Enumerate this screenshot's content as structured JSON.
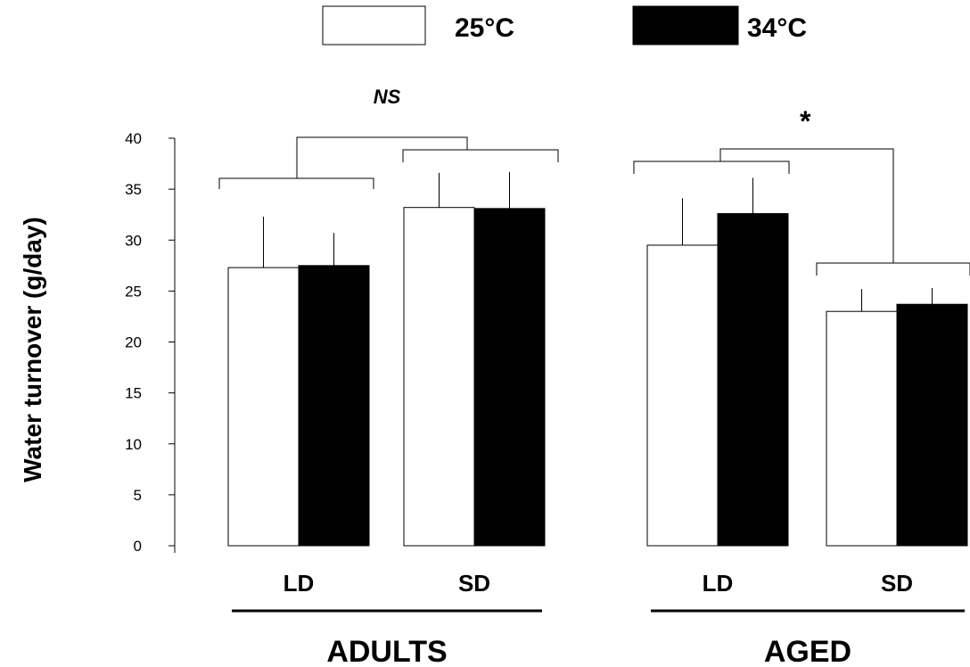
{
  "chart_data": {
    "type": "bar",
    "ylabel": "Water turnover (g/day)",
    "ylim": [
      0,
      40
    ],
    "yticks": [
      0,
      5,
      10,
      15,
      20,
      25,
      30,
      35,
      40
    ],
    "legend": {
      "position": "top",
      "entries": [
        {
          "name": "25°C",
          "color": "#ffffff"
        },
        {
          "name": "34°C",
          "color": "#000000"
        }
      ]
    },
    "series": [
      {
        "name": "25°C",
        "color": "#ffffff"
      },
      {
        "name": "34°C",
        "color": "#000000"
      }
    ],
    "groups": [
      {
        "label": "ADULTS",
        "significance": "NS",
        "categories": [
          {
            "label": "LD",
            "values": [
              27.3,
              27.5
            ],
            "errors": [
              5.0,
              3.2
            ]
          },
          {
            "label": "SD",
            "values": [
              33.2,
              33.1
            ],
            "errors": [
              3.4,
              3.6
            ]
          }
        ]
      },
      {
        "label": "AGED",
        "significance": "*",
        "categories": [
          {
            "label": "LD",
            "values": [
              29.5,
              32.6
            ],
            "errors": [
              4.6,
              3.5
            ]
          },
          {
            "label": "SD",
            "values": [
              23.0,
              23.7
            ],
            "errors": [
              2.2,
              1.6
            ]
          }
        ]
      }
    ],
    "grid": false
  }
}
